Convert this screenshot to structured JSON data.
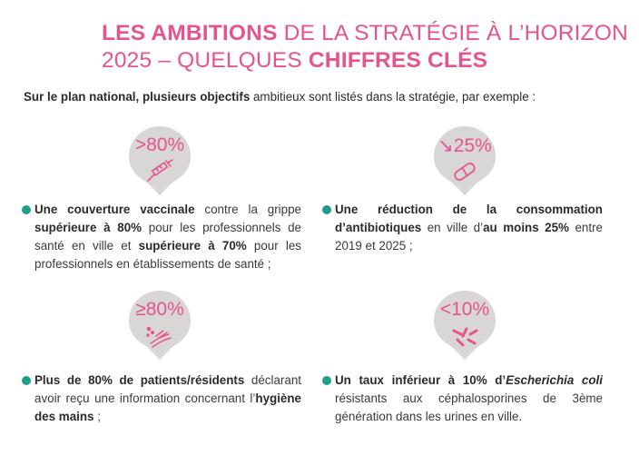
{
  "title": {
    "line1_bold": "LES AMBITIONS",
    "line1_rest": " DE LA STRATÉGIE À L’HORIZON",
    "line2_rest": "2025 – QUELQUES ",
    "line2_bold": "CHIFFRES CLÉS"
  },
  "intro": {
    "bold": "Sur le plan national, plusieurs objectifs",
    "rest": " ambitieux sont listés dans la stratégie, par exemple :"
  },
  "colors": {
    "accent": "#e5548f",
    "bullet": "#1f9e8a",
    "pin": "#d9d6d6"
  },
  "items": [
    {
      "stat": ">80%",
      "icon": "syringe-icon",
      "t1": "Une couverture vaccinale",
      "t2": " contre la grippe ",
      "t3": "supérieure à 80%",
      "t4": " pour les professionnels de santé en ville et ",
      "t5": "supérieure à 70%",
      "t6": " pour les professionnels en établissements de santé ;"
    },
    {
      "stat": "↘25%",
      "icon": "pill-capsule-icon",
      "t1": "Une réduction de la consommation d’antibiotiques",
      "t2": " en ville d’",
      "t3": "au moins 25%",
      "t4": " entre 2019 et 2025 ;"
    },
    {
      "stat": "≥80%",
      "icon": "hand-washing-icon",
      "t1": "Plus de 80% de patients/résidents",
      "t2": " déclarant avoir reçu une information concernant l’",
      "t3": "hygiène des mains",
      "t4": " ;"
    },
    {
      "stat": "<10%",
      "icon": "bacteria-icon",
      "t1": "Un taux inférieur à 10% d’",
      "t2": "Escherichia coli",
      "t3": " résistants aux céphalosporines de 3ème génération dans les urines en ville."
    }
  ]
}
